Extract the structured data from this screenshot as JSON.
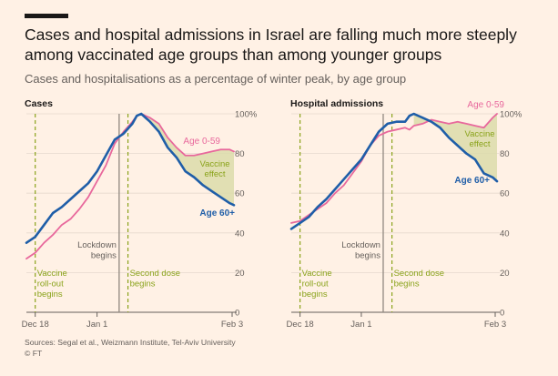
{
  "header": {
    "title": "Cases and hospital admissions in Israel are falling much more steeply among vaccinated age groups than among younger groups",
    "subtitle": "Cases and hospitalisations as a percentage of winter peak, by age group"
  },
  "footer": {
    "source": "Sources: Segal et al., Weizmann Institute, Tel-Aviv University",
    "credit": "© FT"
  },
  "colors": {
    "background": "#fff1e5",
    "age_0_59": "#e8689c",
    "age_60_plus": "#1f5ea8",
    "vaccine_effect_fill": "#dcdcaa",
    "event_marker": "#8aa31b",
    "lockdown_marker": "#908880"
  },
  "chart_data": [
    {
      "type": "line",
      "title": "Cases",
      "x_unit": "days",
      "xlim": [
        -2,
        45
      ],
      "ylim": [
        0,
        100
      ],
      "x_ticks": [
        {
          "label": "Dec 18",
          "x": 0
        },
        {
          "label": "Jan 1",
          "x": 14
        },
        {
          "label": "Feb 3",
          "x": 47
        }
      ],
      "y_ticks": [
        {
          "label": "0",
          "value": 0
        },
        {
          "label": "20",
          "value": 20
        },
        {
          "label": "40",
          "value": 40
        },
        {
          "label": "60",
          "value": 60
        },
        {
          "label": "80",
          "value": 80
        },
        {
          "label": "100%",
          "value": 100
        }
      ],
      "series": [
        {
          "name": "Age 0-59",
          "x": [
            -2,
            0,
            2,
            4,
            6,
            8,
            10,
            12,
            14,
            16,
            18,
            20,
            22,
            23,
            24,
            25,
            26,
            28,
            30,
            32,
            34,
            36,
            38,
            40,
            42,
            44,
            45
          ],
          "values": [
            27,
            30,
            35,
            39,
            44,
            47,
            52,
            58,
            66,
            74,
            85,
            91,
            96,
            99,
            100,
            99,
            98,
            95,
            88,
            83,
            79,
            79,
            80,
            81,
            82,
            82,
            81
          ]
        },
        {
          "name": "Age 60+",
          "x": [
            -2,
            0,
            2,
            4,
            6,
            8,
            10,
            12,
            14,
            16,
            18,
            20,
            22,
            23,
            24,
            25,
            26,
            28,
            30,
            32,
            34,
            36,
            38,
            40,
            42,
            44,
            45
          ],
          "values": [
            35,
            38,
            44,
            50,
            53,
            57,
            61,
            65,
            71,
            79,
            87,
            90,
            95,
            99,
            100,
            98,
            96,
            91,
            83,
            78,
            71,
            68,
            64,
            61,
            58,
            55,
            54
          ]
        }
      ],
      "markers": [
        {
          "x": 0,
          "label": [
            "Vaccine",
            "roll-out",
            "begins"
          ],
          "style": "vaccine"
        },
        {
          "x": 19,
          "label": [
            "Lockdown",
            "begins"
          ],
          "style": "lockdown"
        },
        {
          "x": 21,
          "label": [
            "Second dose",
            "begins"
          ],
          "style": "vaccine"
        }
      ],
      "annotations": [
        "Vaccine",
        "effect"
      ],
      "series_labels": [
        {
          "series": "Age 0-59",
          "text": "Age 0-59"
        },
        {
          "series": "Age 60+",
          "text": "Age 60+"
        }
      ]
    },
    {
      "type": "line",
      "title": "Hospital admissions",
      "x_unit": "days",
      "xlim": [
        -2,
        45
      ],
      "ylim": [
        0,
        100
      ],
      "x_ticks": [
        {
          "label": "Dec 18",
          "x": 0
        },
        {
          "label": "Jan 1",
          "x": 14
        },
        {
          "label": "Feb 3",
          "x": 47
        }
      ],
      "y_ticks": [
        {
          "label": "0",
          "value": 0
        },
        {
          "label": "20",
          "value": 20
        },
        {
          "label": "40",
          "value": 40
        },
        {
          "label": "60",
          "value": 60
        },
        {
          "label": "80",
          "value": 80
        },
        {
          "label": "100%",
          "value": 100
        }
      ],
      "series": [
        {
          "name": "Age 0-59",
          "x": [
            -2,
            0,
            2,
            4,
            6,
            8,
            10,
            12,
            14,
            16,
            18,
            20,
            22,
            24,
            25,
            26,
            28,
            30,
            32,
            34,
            36,
            38,
            40,
            42,
            44,
            45
          ],
          "values": [
            45,
            46,
            49,
            52,
            55,
            60,
            64,
            70,
            76,
            84,
            89,
            91,
            92,
            93,
            92,
            94,
            95,
            97,
            96,
            95,
            96,
            95,
            94,
            93,
            98,
            100
          ],
          "note": "reaches 100% at right edge"
        },
        {
          "name": "Age 60+",
          "x": [
            -2,
            0,
            2,
            4,
            6,
            8,
            10,
            12,
            14,
            16,
            18,
            20,
            22,
            24,
            25,
            26,
            28,
            30,
            32,
            34,
            36,
            38,
            40,
            42,
            44,
            45
          ],
          "values": [
            42,
            45,
            48,
            53,
            57,
            62,
            67,
            72,
            77,
            84,
            91,
            95,
            96,
            96,
            99,
            100,
            98,
            96,
            93,
            88,
            84,
            80,
            77,
            70,
            68,
            66
          ]
        }
      ],
      "markers": [
        {
          "x": 0,
          "label": [
            "Vaccine",
            "roll-out",
            "begins"
          ],
          "style": "vaccine"
        },
        {
          "x": 19,
          "label": [
            "Lockdown",
            "begins"
          ],
          "style": "lockdown"
        },
        {
          "x": 21,
          "label": [
            "Second dose",
            "begins"
          ],
          "style": "vaccine"
        }
      ],
      "annotations": [
        "Vaccine",
        "effect"
      ],
      "series_labels": [
        {
          "series": "Age 0-59",
          "text": "Age 0-59"
        },
        {
          "series": "Age 60+",
          "text": "Age 60+"
        }
      ]
    }
  ]
}
